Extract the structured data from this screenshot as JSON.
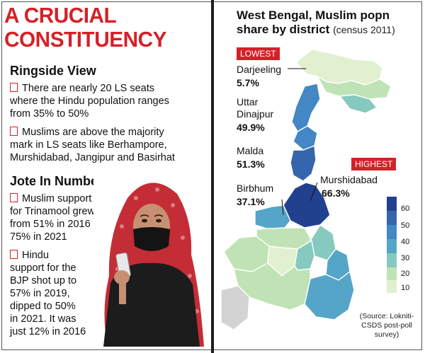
{
  "left": {
    "headline_line1": "A CRUCIAL",
    "headline_line2": "CONSTITUENCY",
    "ringside_title": "Ringside View",
    "ringside_bullets": [
      [
        "There are nearly 20 LS seats",
        "where the Hindu population ranges",
        "from 35% to 50%"
      ],
      [
        "Muslims are above the majority",
        "mark in LS seats like Berhampore,",
        "Murshidabad, Jangipur and Basirhat"
      ]
    ],
    "numbers_title": "Jote In Numbers",
    "numbers_bullets": [
      [
        "Muslim support",
        "for Trinamool grew",
        "from 51% in 2016 to",
        "75% in 2021"
      ],
      [
        "Hindu",
        "support for the",
        "BJP shot up to",
        "57% in 2019,",
        "dipped to 50%",
        "in 2021. It was",
        "just 12% in 2016"
      ]
    ]
  },
  "map": {
    "title_line1": "West Bengal, Muslim popn",
    "title_line2": "share by district",
    "census": "(census 2011)",
    "lowest_badge": "LOWEST",
    "highest_badge": "HIGHEST",
    "districts": {
      "darjeeling": {
        "name": "Darjeeling",
        "value": "5.7%"
      },
      "uttar_dinajpur": {
        "name1": "Uttar",
        "name2": "Dinajpur",
        "value": "49.9%"
      },
      "malda": {
        "name": "Malda",
        "value": "51.3%"
      },
      "birbhum": {
        "name": "Birbhum",
        "value": "37.1%"
      },
      "murshidabad": {
        "name": "Murshidabad",
        "value": "66.3%"
      }
    },
    "legend": [
      "60",
      "50",
      "40",
      "30",
      "20",
      "10"
    ],
    "legend_colors": [
      "#21418f",
      "#3565ad",
      "#4387c4",
      "#55a5c9",
      "#86c9be",
      "#bfe3b5",
      "#e1f0cf"
    ],
    "source_line1": "(Source: Lokniti-",
    "source_line2": "CSDS post-poll",
    "source_line3": "survey)"
  },
  "colors": {
    "accent": "#d42128",
    "divider": "#1d1d1d"
  }
}
